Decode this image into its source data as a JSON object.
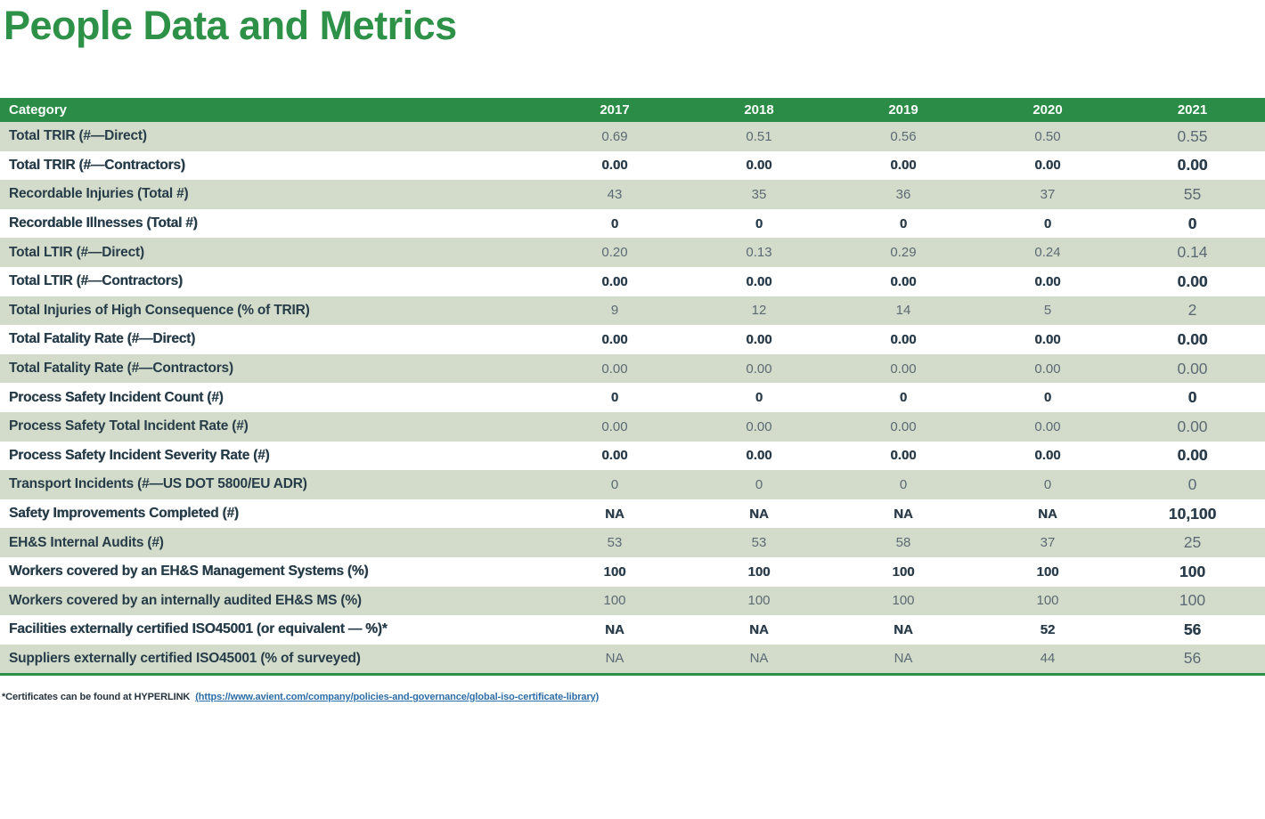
{
  "page": {
    "title": "People Data and Metrics"
  },
  "colors": {
    "title_green": "#2e9148",
    "header_green": "#2a8c46",
    "row_green": "#d3dcca",
    "label_text": "#273c49",
    "value_text": "#5b6a74",
    "link_blue": "#2d6da8"
  },
  "table": {
    "header": {
      "category": "Category",
      "years": [
        "2017",
        "2018",
        "2019",
        "2020",
        "2021"
      ]
    },
    "rows": [
      {
        "label": "Total TRIR (#—Direct)",
        "values": [
          "0.69",
          "0.51",
          "0.56",
          "0.50",
          "0.55"
        ]
      },
      {
        "label": "Total TRIR (#—Contractors)",
        "values": [
          "0.00",
          "0.00",
          "0.00",
          "0.00",
          "0.00"
        ]
      },
      {
        "label": "Recordable Injuries (Total #)",
        "values": [
          "43",
          "35",
          "36",
          "37",
          "55"
        ]
      },
      {
        "label": "Recordable Illnesses (Total #)",
        "values": [
          "0",
          "0",
          "0",
          "0",
          "0"
        ]
      },
      {
        "label": "Total LTIR (#—Direct)",
        "values": [
          "0.20",
          "0.13",
          "0.29",
          "0.24",
          "0.14"
        ]
      },
      {
        "label": "Total LTIR (#—Contractors)",
        "values": [
          "0.00",
          "0.00",
          "0.00",
          "0.00",
          "0.00"
        ]
      },
      {
        "label": "Total Injuries of High Consequence (% of TRIR)",
        "values": [
          "9",
          "12",
          "14",
          "5",
          "2"
        ]
      },
      {
        "label": "Total Fatality Rate (#—Direct)",
        "values": [
          "0.00",
          "0.00",
          "0.00",
          "0.00",
          "0.00"
        ]
      },
      {
        "label": "Total Fatality Rate (#—Contractors)",
        "values": [
          "0.00",
          "0.00",
          "0.00",
          "0.00",
          "0.00"
        ]
      },
      {
        "label": "Process Safety Incident Count (#)",
        "values": [
          "0",
          "0",
          "0",
          "0",
          "0"
        ]
      },
      {
        "label": "Process Safety Total Incident Rate (#)",
        "values": [
          "0.00",
          "0.00",
          "0.00",
          "0.00",
          "0.00"
        ]
      },
      {
        "label": "Process Safety Incident Severity Rate (#)",
        "values": [
          "0.00",
          "0.00",
          "0.00",
          "0.00",
          "0.00"
        ]
      },
      {
        "label": "Transport Incidents (#—US DOT 5800/EU ADR)",
        "values": [
          "0",
          "0",
          "0",
          "0",
          "0"
        ]
      },
      {
        "label": "Safety Improvements Completed (#)",
        "values": [
          "NA",
          "NA",
          "NA",
          "NA",
          "10,100"
        ]
      },
      {
        "label": "EH&S Internal Audits (#)",
        "values": [
          "53",
          "53",
          "58",
          "37",
          "25"
        ]
      },
      {
        "label": "Workers covered by an EH&S Management Systems (%)",
        "values": [
          "100",
          "100",
          "100",
          "100",
          "100"
        ]
      },
      {
        "label": "Workers covered by an internally audited EH&S MS (%)",
        "values": [
          "100",
          "100",
          "100",
          "100",
          "100"
        ]
      },
      {
        "label": "Facilities externally certified ISO45001 (or equivalent — %)*",
        "values": [
          "NA",
          "NA",
          "NA",
          "52",
          "56"
        ]
      },
      {
        "label": "Suppliers externally certified ISO45001 (% of surveyed)",
        "values": [
          "NA",
          "NA",
          "NA",
          "44",
          "56"
        ]
      }
    ]
  },
  "footnote": {
    "prefix": "*Certificates can be found at HYPERLINK ",
    "link": "(https://www.avient.com/company/policies-and-governance/global-iso-certificate-library)"
  }
}
